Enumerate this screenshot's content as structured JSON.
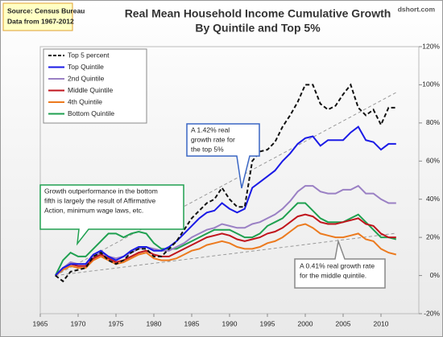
{
  "chart_data": {
    "type": "line",
    "title": [
      "Real Mean Household Income Cumulative Growth",
      "By Quintile and Top 5%"
    ],
    "source": [
      "Source: Census Bureau",
      "Data from 1967-2012"
    ],
    "watermark": "dshort.com",
    "annotations": [
      [
        "A 1.42% real",
        "growth rate for",
        "the top 5%"
      ],
      [
        "Growth outperformance  in the bottom",
        "fifth is largely the result of Affirmative",
        "Action, minimum wage laws, etc."
      ],
      [
        "A 0.41% real growth rate",
        "for the middle quintile."
      ]
    ],
    "x": [
      1967,
      1968,
      1969,
      1970,
      1971,
      1972,
      1973,
      1974,
      1975,
      1976,
      1977,
      1978,
      1979,
      1980,
      1981,
      1982,
      1983,
      1984,
      1985,
      1986,
      1987,
      1988,
      1989,
      1990,
      1991,
      1992,
      1993,
      1994,
      1995,
      1996,
      1997,
      1998,
      1999,
      2000,
      2001,
      2002,
      2003,
      2004,
      2005,
      2006,
      2007,
      2008,
      2009,
      2010,
      2011,
      2012
    ],
    "series": [
      {
        "name": "Top 5 percent",
        "color": "#111111",
        "dashed": true,
        "values": [
          0,
          -3,
          2,
          3,
          4,
          10,
          12,
          8,
          6,
          8,
          12,
          14,
          14,
          10,
          10,
          14,
          18,
          24,
          30,
          34,
          38,
          40,
          46,
          40,
          36,
          36,
          60,
          65,
          66,
          70,
          78,
          84,
          91,
          100,
          100,
          90,
          87,
          89,
          95,
          100,
          88,
          84,
          87,
          79,
          88,
          88
        ]
      },
      {
        "name": "Top Quintile",
        "color": "#1a1ae6",
        "values": [
          0,
          4,
          6,
          6,
          6,
          11,
          13,
          10,
          8,
          10,
          13,
          15,
          15,
          13,
          13,
          15,
          18,
          22,
          26,
          30,
          33,
          34,
          38,
          35,
          33,
          35,
          46,
          49,
          52,
          55,
          60,
          64,
          69,
          72,
          73,
          68,
          71,
          71,
          71,
          75,
          78,
          71,
          70,
          66,
          69,
          69
        ]
      },
      {
        "name": "2nd Quintile",
        "color": "#9a80c4",
        "values": [
          0,
          4,
          7,
          6,
          6,
          10,
          12,
          10,
          9,
          10,
          12,
          14,
          15,
          14,
          13,
          13,
          15,
          17,
          20,
          22,
          24,
          25,
          27,
          26,
          25,
          25,
          27,
          28,
          30,
          32,
          35,
          39,
          44,
          47,
          47,
          44,
          43,
          43,
          45,
          45,
          47,
          43,
          43,
          40,
          38,
          38
        ]
      },
      {
        "name": "Middle Quintile",
        "color": "#c0141c",
        "values": [
          0,
          4,
          6,
          5,
          5,
          9,
          11,
          9,
          7,
          8,
          10,
          12,
          13,
          11,
          10,
          10,
          12,
          14,
          16,
          18,
          20,
          21,
          22,
          21,
          19,
          18,
          19,
          20,
          22,
          23,
          25,
          28,
          31,
          32,
          31,
          28,
          27,
          27,
          28,
          29,
          30,
          27,
          26,
          22,
          20,
          20
        ]
      },
      {
        "name": "4th Quintile",
        "color": "#ec7a1e",
        "values": [
          0,
          3,
          5,
          4,
          4,
          8,
          10,
          8,
          6,
          7,
          9,
          11,
          12,
          9,
          8,
          8,
          9,
          11,
          13,
          14,
          16,
          17,
          18,
          17,
          15,
          14,
          14,
          15,
          17,
          18,
          20,
          23,
          26,
          27,
          25,
          22,
          21,
          20,
          20,
          21,
          22,
          19,
          18,
          14,
          12,
          11
        ]
      },
      {
        "name": "Bottom Quintile",
        "color": "#1fa050",
        "values": [
          0,
          8,
          12,
          10,
          10,
          14,
          18,
          22,
          22,
          20,
          22,
          23,
          22,
          17,
          14,
          14,
          14,
          16,
          18,
          20,
          22,
          24,
          24,
          24,
          22,
          20,
          20,
          22,
          26,
          28,
          30,
          34,
          38,
          38,
          34,
          30,
          28,
          28,
          28,
          30,
          32,
          28,
          24,
          20,
          20,
          19
        ]
      }
    ],
    "xlim": [
      1965,
      2015
    ],
    "xticks": [
      1965,
      1970,
      1975,
      1980,
      1985,
      1990,
      1995,
      2000,
      2005,
      2010
    ],
    "ylim": [
      -20,
      120
    ],
    "yticks": [
      {
        "value": -20,
        "label": "-20%"
      },
      {
        "value": 0,
        "label": "0%"
      },
      {
        "value": 20,
        "label": "20%"
      },
      {
        "value": 40,
        "label": "40%"
      },
      {
        "value": 60,
        "label": "60%"
      },
      {
        "value": 80,
        "label": "80%"
      },
      {
        "value": 100,
        "label": "100%"
      },
      {
        "value": 120,
        "label": "120%"
      }
    ]
  }
}
